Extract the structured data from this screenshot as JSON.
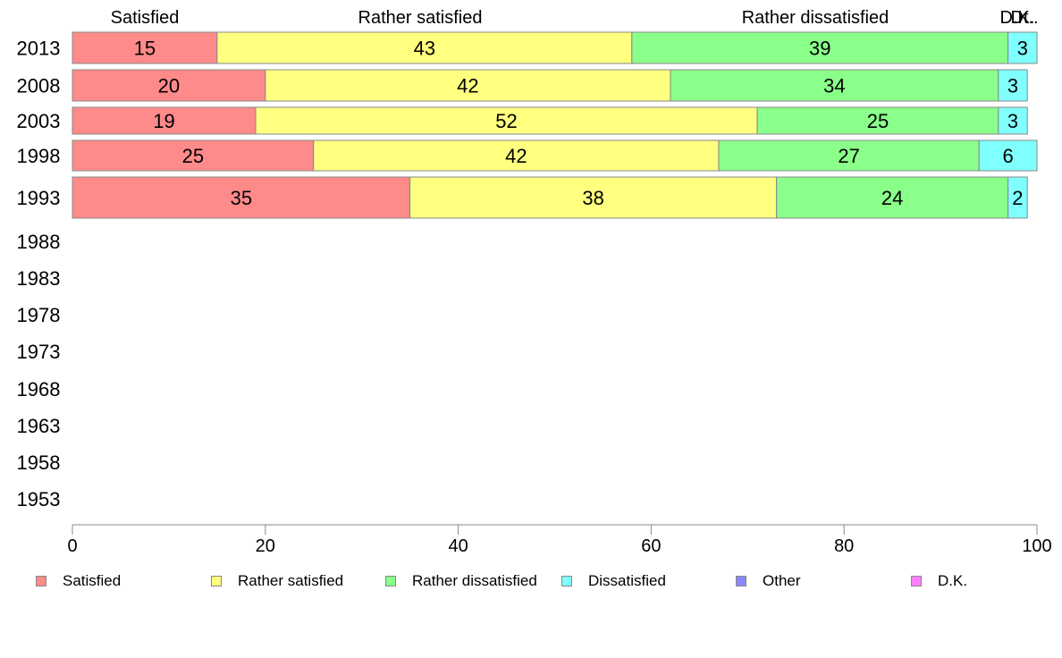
{
  "chart_data": {
    "type": "bar",
    "orientation": "horizontal",
    "stacked": true,
    "categories": [
      "2013",
      "2008",
      "2003",
      "1998",
      "1993",
      "1988",
      "1983",
      "1978",
      "1973",
      "1968",
      "1963",
      "1958",
      "1953"
    ],
    "series": [
      {
        "name": "Satisfied",
        "color": "#ff8a8a",
        "values": [
          15,
          20,
          19,
          25,
          35,
          null,
          null,
          null,
          null,
          null,
          null,
          null,
          null
        ]
      },
      {
        "name": "Rather satisfied",
        "color": "#ffff80",
        "values": [
          43,
          42,
          52,
          42,
          38,
          null,
          null,
          null,
          null,
          null,
          null,
          null,
          null
        ]
      },
      {
        "name": "Rather dissatisfied",
        "color": "#8aff8a",
        "values": [
          39,
          34,
          25,
          27,
          24,
          null,
          null,
          null,
          null,
          null,
          null,
          null,
          null
        ]
      },
      {
        "name": "Dissatisfied",
        "color": "#80ffff",
        "values": [
          3,
          3,
          3,
          6,
          2,
          null,
          null,
          null,
          null,
          null,
          null,
          null,
          null
        ]
      },
      {
        "name": "Other",
        "color": "#8a8aff",
        "values": [
          0,
          0,
          0,
          0,
          0,
          null,
          null,
          null,
          null,
          null,
          null,
          null,
          null
        ]
      },
      {
        "name": "D.K.",
        "color": "#ff80ff",
        "values": [
          0,
          0,
          0,
          0,
          0,
          null,
          null,
          null,
          null,
          null,
          null,
          null,
          null
        ]
      }
    ],
    "top_labels": [
      "Satisfied",
      "Rather satisfied",
      "Rather dissatisfied",
      "D.K.",
      "Dt.."
    ],
    "xlim": [
      0,
      100
    ],
    "xticks": [
      "0",
      "20",
      "40",
      "60",
      "80",
      "100"
    ],
    "grid": false,
    "legend_position": "bottom"
  }
}
